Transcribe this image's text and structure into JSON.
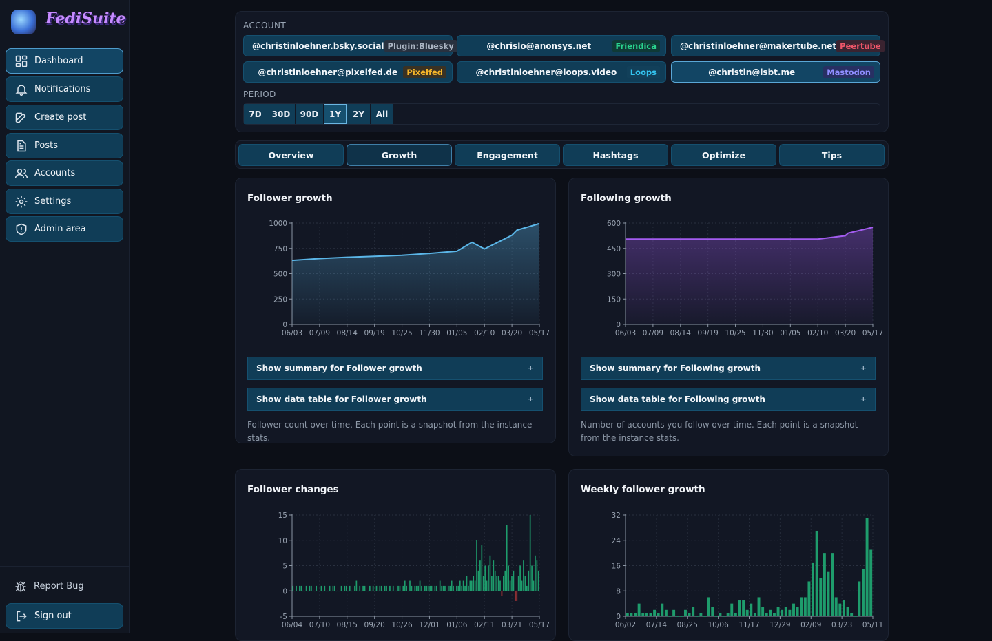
{
  "app": {
    "name": "FediSuite"
  },
  "sidebar": {
    "items": [
      {
        "label": "Dashboard",
        "icon": "dashboard-icon"
      },
      {
        "label": "Notifications",
        "icon": "bell-icon"
      },
      {
        "label": "Create post",
        "icon": "edit-icon"
      },
      {
        "label": "Posts",
        "icon": "document-icon"
      },
      {
        "label": "Accounts",
        "icon": "users-icon"
      },
      {
        "label": "Settings",
        "icon": "gear-icon"
      },
      {
        "label": "Admin area",
        "icon": "shield-icon"
      }
    ],
    "report_bug": "Report Bug",
    "sign_out": "Sign out"
  },
  "account_section": {
    "label": "ACCOUNT",
    "accounts": [
      {
        "name": "@christinloehner.bsky.social",
        "platform": "Plugin:Bluesky",
        "color": "#aab4c2",
        "bg": "#28313f"
      },
      {
        "name": "@chrislo@anonsys.net",
        "platform": "Friendica",
        "color": "#2ad48e",
        "bg": "#0f3a36"
      },
      {
        "name": "@christinloehner@makertube.net",
        "platform": "Peertube",
        "color": "#f0566a",
        "bg": "#3a2330"
      },
      {
        "name": "@christinloehner@pixelfed.de",
        "platform": "Pixelfed",
        "color": "#f5b52a",
        "bg": "#3a3224"
      },
      {
        "name": "@christinloehner@loops.video",
        "platform": "Loops",
        "color": "#33c4f0",
        "bg": "#12405a"
      },
      {
        "name": "@christin@lsbt.me",
        "platform": "Mastodon",
        "color": "#8f8dff",
        "bg": "#283063",
        "active": true
      }
    ]
  },
  "period_section": {
    "label": "PERIOD",
    "options": [
      "7D",
      "30D",
      "90D",
      "1Y",
      "2Y",
      "All"
    ],
    "selected": "1Y"
  },
  "tabs": {
    "items": [
      "Overview",
      "Growth",
      "Engagement",
      "Hashtags",
      "Optimize",
      "Tips"
    ],
    "selected": "Growth"
  },
  "panels": {
    "follower_growth": {
      "title": "Follower growth",
      "summary_label": "Show summary for Follower growth",
      "table_label": "Show data table for Follower growth",
      "note": "Follower count over time. Each point is a snapshot from the instance stats."
    },
    "following_growth": {
      "title": "Following growth",
      "summary_label": "Show summary for Following growth",
      "table_label": "Show data table for Following growth",
      "note": "Number of accounts you follow over time. Each point is a snapshot from the instance stats."
    },
    "follower_changes": {
      "title": "Follower changes"
    },
    "weekly_growth": {
      "title": "Weekly follower growth"
    }
  },
  "chart_data": [
    {
      "type": "area",
      "title": "Follower growth",
      "color": "#5bb6e8",
      "ylim": [
        0,
        1000
      ],
      "yticks": [
        0,
        250,
        500,
        750,
        1000
      ],
      "xticks": [
        "06/03",
        "07/09",
        "08/14",
        "09/19",
        "10/25",
        "11/30",
        "01/05",
        "02/10",
        "03/20",
        "05/17"
      ],
      "x": [
        "06/03",
        "07/09",
        "08/14",
        "09/19",
        "10/25",
        "11/30",
        "01/05",
        "02/10",
        "02/25",
        "03/20",
        "04/15",
        "05/17"
      ],
      "y": [
        632,
        650,
        662,
        672,
        682,
        700,
        722,
        745,
        810,
        880,
        930,
        995
      ]
    },
    {
      "type": "area",
      "title": "Following growth",
      "color": "#a35cf0",
      "ylim": [
        0,
        600
      ],
      "yticks": [
        0,
        150,
        300,
        450,
        600
      ],
      "xticks": [
        "06/03",
        "07/09",
        "08/14",
        "09/19",
        "10/25",
        "11/30",
        "01/05",
        "02/10",
        "03/20",
        "05/17"
      ],
      "x": [
        "06/03",
        "07/09",
        "08/14",
        "09/19",
        "10/25",
        "11/30",
        "01/05",
        "02/10",
        "03/20",
        "04/15",
        "05/17"
      ],
      "y": [
        505,
        505,
        505,
        505,
        505,
        505,
        505,
        505,
        525,
        540,
        575
      ]
    },
    {
      "type": "bar",
      "title": "Follower changes",
      "color": "#1e9c6c",
      "negative_color": "#c33a3a",
      "ylim": [
        -5,
        15
      ],
      "yticks": [
        -5,
        0,
        5,
        10,
        15
      ],
      "xticks": [
        "06/04",
        "07/10",
        "08/15",
        "09/20",
        "10/26",
        "12/01",
        "01/06",
        "02/11",
        "03/21",
        "05/17"
      ],
      "values": [
        1,
        0,
        1,
        0,
        1,
        1,
        0,
        0,
        1,
        0,
        1,
        1,
        0,
        0,
        1,
        0,
        0,
        1,
        0,
        1,
        0,
        0,
        1,
        0,
        1,
        1,
        0,
        0,
        0,
        1,
        0,
        1,
        1,
        0,
        1,
        0,
        0,
        1,
        2,
        0,
        1,
        0,
        1,
        1,
        0,
        0,
        1,
        0,
        1,
        0,
        1,
        0,
        1,
        1,
        0,
        1,
        1,
        0,
        1,
        0,
        1,
        0,
        0,
        1,
        1,
        0,
        1,
        2,
        1,
        0,
        2,
        1,
        0,
        1,
        1,
        1,
        2,
        1,
        0,
        1,
        1,
        1,
        1,
        1,
        0,
        1,
        1,
        0,
        2,
        1,
        1,
        1,
        0,
        1,
        1,
        2,
        1,
        0,
        1,
        1,
        2,
        1,
        2,
        1,
        3,
        1,
        2,
        2,
        3,
        2,
        10,
        4,
        6,
        9,
        3,
        5,
        2,
        5,
        7,
        3,
        6,
        4,
        3,
        3,
        2,
        -1,
        3,
        4,
        13,
        5,
        2,
        3,
        4,
        -2,
        -2,
        3,
        5,
        2,
        6,
        3,
        1,
        4,
        15,
        5,
        2,
        7,
        6,
        4
      ]
    },
    {
      "type": "bar",
      "title": "Weekly follower growth",
      "color": "#1e9c6c",
      "ylim": [
        0,
        32
      ],
      "yticks": [
        0,
        8,
        16,
        24,
        32
      ],
      "xticks": [
        "06/02",
        "07/14",
        "08/25",
        "10/06",
        "11/17",
        "12/29",
        "02/09",
        "03/23",
        "05/11"
      ],
      "values": [
        1,
        1,
        1,
        4,
        1,
        1,
        1,
        2,
        1,
        4,
        2,
        0,
        2,
        0,
        0,
        2,
        1,
        3,
        0,
        1,
        0,
        6,
        3,
        0,
        1,
        0,
        1,
        4,
        1,
        5,
        5,
        2,
        4,
        1,
        6,
        3,
        1,
        2,
        1,
        3,
        2,
        3,
        2,
        4,
        3,
        6,
        6,
        11,
        17,
        27,
        12,
        20,
        14,
        20,
        6,
        4,
        5,
        3,
        1,
        0,
        11,
        15,
        31,
        21
      ]
    }
  ]
}
